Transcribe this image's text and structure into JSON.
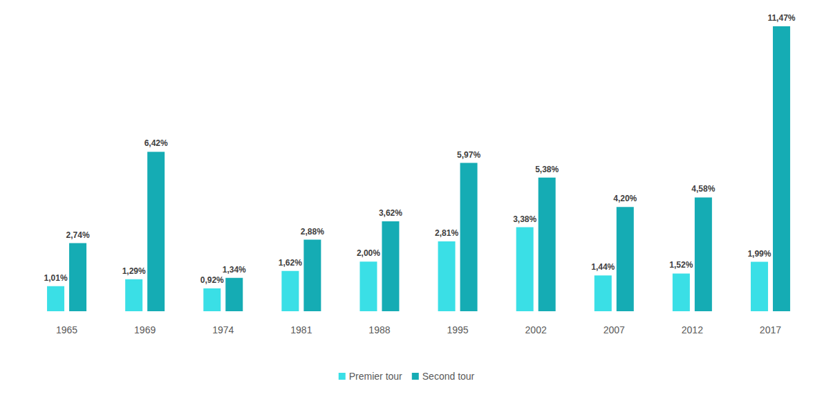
{
  "chart_data": {
    "type": "bar",
    "categories": [
      "1965",
      "1969",
      "1974",
      "1981",
      "1988",
      "1995",
      "2002",
      "2007",
      "2012",
      "2017"
    ],
    "series": [
      {
        "name": "Premier tour",
        "color": "#3ADFE6",
        "values": [
          1.01,
          1.29,
          0.92,
          1.62,
          2.0,
          2.81,
          3.38,
          1.44,
          1.52,
          1.99
        ],
        "value_labels": [
          "1,01%",
          "1,29%",
          "0,92%",
          "1,62%",
          "2,00%",
          "2,81%",
          "3,38%",
          "1,44%",
          "1,52%",
          "1,99%"
        ]
      },
      {
        "name": "Second tour",
        "color": "#15ACB4",
        "values": [
          2.74,
          6.42,
          1.34,
          2.88,
          3.62,
          5.97,
          5.38,
          4.2,
          4.58,
          11.47
        ],
        "value_labels": [
          "2,74%",
          "6,42%",
          "1,34%",
          "2,88%",
          "3,62%",
          "5,97%",
          "5,38%",
          "4,20%",
          "4,58%",
          "11,47%"
        ]
      }
    ],
    "data_labels": true,
    "legend": "bottom",
    "grid": false,
    "tick_labels": "x"
  }
}
